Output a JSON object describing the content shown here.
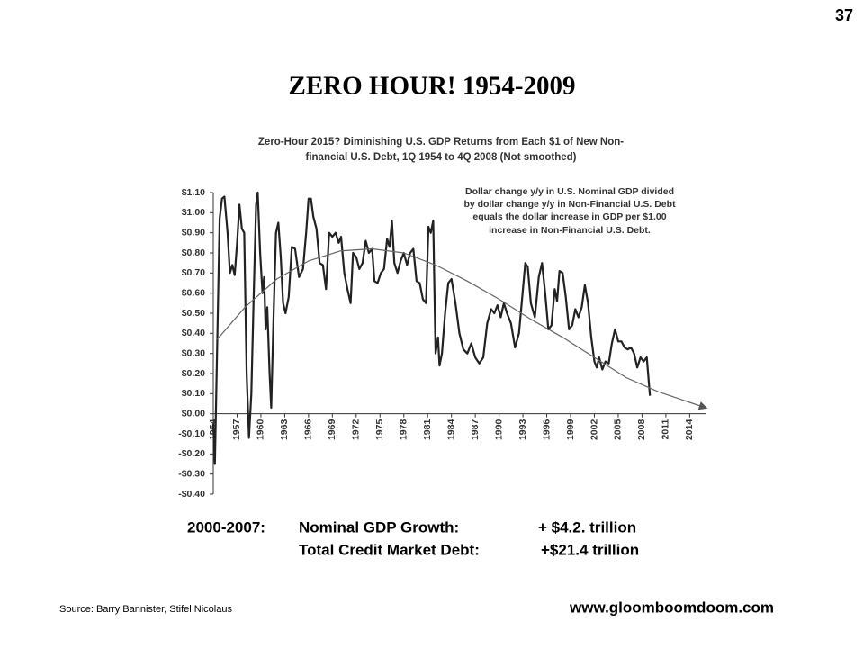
{
  "slide_number": "37",
  "title": "ZERO  HOUR!  1954-2009",
  "chart_data": {
    "type": "line",
    "title": [
      "Zero-Hour 2015? Diminishing U.S. GDP Returns from Each $1 of New Non-",
      "financial U.S. Debt, 1Q 1954 to 4Q 2008 (Not  smoothed)"
    ],
    "annotation": [
      "Dollar change y/y in U.S. Nominal GDP divided",
      "by dollar change y/y in Non-Financial U.S. Debt",
      "equals  the dollar increase in GDP per $1.00",
      "increase in Non-Financial U.S. Debt."
    ],
    "xlim": [
      1954,
      2016
    ],
    "xticks": [
      1954,
      1957,
      1960,
      1963,
      1966,
      1969,
      1972,
      1975,
      1978,
      1981,
      1984,
      1987,
      1990,
      1993,
      1996,
      1999,
      2002,
      2005,
      2008,
      2011,
      2014
    ],
    "ylim": [
      -0.4,
      1.1
    ],
    "yticks": [
      {
        "value": 1.1,
        "label": "$1.10"
      },
      {
        "value": 1.0,
        "label": "$1.00"
      },
      {
        "value": 0.9,
        "label": "$0.90"
      },
      {
        "value": 0.8,
        "label": "$0.80"
      },
      {
        "value": 0.7,
        "label": "$0.70"
      },
      {
        "value": 0.6,
        "label": "$0.60"
      },
      {
        "value": 0.5,
        "label": "$0.50"
      },
      {
        "value": 0.4,
        "label": "$0.40"
      },
      {
        "value": 0.3,
        "label": "$0.30"
      },
      {
        "value": 0.2,
        "label": "$0.20"
      },
      {
        "value": 0.1,
        "label": "$0.10"
      },
      {
        "value": 0,
        "label": "$0.00"
      },
      {
        "value": -0.1,
        "label": "-$0.10"
      },
      {
        "value": -0.2,
        "label": "-$0.20"
      },
      {
        "value": -0.3,
        "label": "-$0.30"
      },
      {
        "value": -0.4,
        "label": "-$0.40"
      }
    ],
    "series": [
      {
        "color": "#222222",
        "x": [
          1954.0,
          1954.2,
          1954.5,
          1954.8,
          1955.1,
          1955.4,
          1955.8,
          1956.1,
          1956.4,
          1956.7,
          1957.0,
          1957.3,
          1957.6,
          1957.9,
          1958.2,
          1958.5,
          1958.8,
          1959.1,
          1959.4,
          1959.6,
          1959.9,
          1960.2,
          1960.4,
          1960.6,
          1960.8,
          1961.1,
          1961.3,
          1961.6,
          1961.9,
          1962.2,
          1962.5,
          1962.8,
          1963.1,
          1963.5,
          1963.9,
          1964.3,
          1964.8,
          1965.3,
          1965.7,
          1966.0,
          1966.3,
          1966.6,
          1967.0,
          1967.4,
          1967.8,
          1968.2,
          1968.6,
          1969.0,
          1969.4,
          1969.8,
          1970.1,
          1970.5,
          1970.9,
          1971.3,
          1971.6,
          1972.0,
          1972.4,
          1972.8,
          1973.2,
          1973.6,
          1974.0,
          1974.3,
          1974.7,
          1975.1,
          1975.5,
          1975.9,
          1976.2,
          1976.5,
          1976.8,
          1977.2,
          1977.6,
          1978.0,
          1978.4,
          1978.8,
          1979.2,
          1979.6,
          1980.0,
          1980.4,
          1980.8,
          1981.1,
          1981.4,
          1981.7,
          1982.0,
          1982.3,
          1982.5,
          1982.8,
          1983.2,
          1983.6,
          1984.0,
          1984.5,
          1985.0,
          1985.5,
          1986.0,
          1986.5,
          1987.0,
          1987.5,
          1988.0,
          1988.5,
          1989.0,
          1989.4,
          1989.8,
          1990.2,
          1990.6,
          1991.0,
          1991.5,
          1992.0,
          1992.5,
          1993.0,
          1993.3,
          1993.6,
          1994.0,
          1994.5,
          1995.0,
          1995.4,
          1995.8,
          1996.2,
          1996.6,
          1997.0,
          1997.3,
          1997.6,
          1998.0,
          1998.4,
          1998.8,
          1999.2,
          1999.6,
          2000.0,
          2000.4,
          2000.8,
          2001.2,
          2001.6,
          2002.0,
          2002.3,
          2002.6,
          2003.0,
          2003.4,
          2003.8,
          2004.2,
          2004.6,
          2005.0,
          2005.4,
          2005.8,
          2006.2,
          2006.6,
          2007.0,
          2007.4,
          2007.8,
          2008.2,
          2008.6,
          2009.0
        ],
        "values": [
          -0.05,
          -0.25,
          0.35,
          0.97,
          1.07,
          1.08,
          0.9,
          0.7,
          0.74,
          0.69,
          0.85,
          1.04,
          0.92,
          0.9,
          0.2,
          -0.12,
          0.1,
          0.6,
          1.04,
          1.1,
          0.8,
          0.6,
          0.68,
          0.42,
          0.53,
          0.2,
          0.03,
          0.5,
          0.9,
          0.95,
          0.78,
          0.55,
          0.5,
          0.58,
          0.83,
          0.82,
          0.68,
          0.72,
          0.9,
          1.07,
          1.07,
          0.98,
          0.92,
          0.75,
          0.74,
          0.62,
          0.9,
          0.88,
          0.9,
          0.85,
          0.88,
          0.7,
          0.62,
          0.55,
          0.8,
          0.78,
          0.72,
          0.75,
          0.86,
          0.8,
          0.82,
          0.66,
          0.65,
          0.7,
          0.72,
          0.87,
          0.83,
          0.96,
          0.75,
          0.7,
          0.76,
          0.8,
          0.74,
          0.8,
          0.82,
          0.66,
          0.65,
          0.57,
          0.55,
          0.93,
          0.9,
          0.96,
          0.3,
          0.38,
          0.24,
          0.3,
          0.5,
          0.65,
          0.67,
          0.55,
          0.4,
          0.32,
          0.3,
          0.35,
          0.28,
          0.25,
          0.28,
          0.45,
          0.52,
          0.5,
          0.54,
          0.48,
          0.55,
          0.5,
          0.45,
          0.33,
          0.4,
          0.62,
          0.75,
          0.73,
          0.55,
          0.48,
          0.68,
          0.75,
          0.6,
          0.42,
          0.44,
          0.62,
          0.56,
          0.71,
          0.7,
          0.58,
          0.42,
          0.44,
          0.52,
          0.48,
          0.53,
          0.64,
          0.55,
          0.38,
          0.26,
          0.23,
          0.28,
          0.22,
          0.26,
          0.25,
          0.35,
          0.42,
          0.36,
          0.36,
          0.33,
          0.32,
          0.33,
          0.3,
          0.23,
          0.28,
          0.26,
          0.28,
          0.09
        ]
      },
      {
        "color": "#666666",
        "arrow": true,
        "x": [
          1954.5,
          1958,
          1962,
          1966,
          1970,
          1974,
          1978,
          1982,
          1986,
          1990,
          1994,
          1998,
          2002,
          2006,
          2010,
          2016
        ],
        "values": [
          0.37,
          0.53,
          0.67,
          0.76,
          0.81,
          0.82,
          0.8,
          0.74,
          0.66,
          0.57,
          0.47,
          0.38,
          0.28,
          0.18,
          0.11,
          0.03
        ]
      }
    ]
  },
  "summary": {
    "line1": [
      "2000-2007:",
      "Nominal GDP Growth:",
      "+ $4.2. trillion"
    ],
    "line2": [
      "Total Credit Market Debt:",
      "+$21.4 trillion"
    ]
  },
  "source": "Source:  Barry Bannister,  Stifel Nicolaus",
  "website": "www.gloomboomdoom.com"
}
